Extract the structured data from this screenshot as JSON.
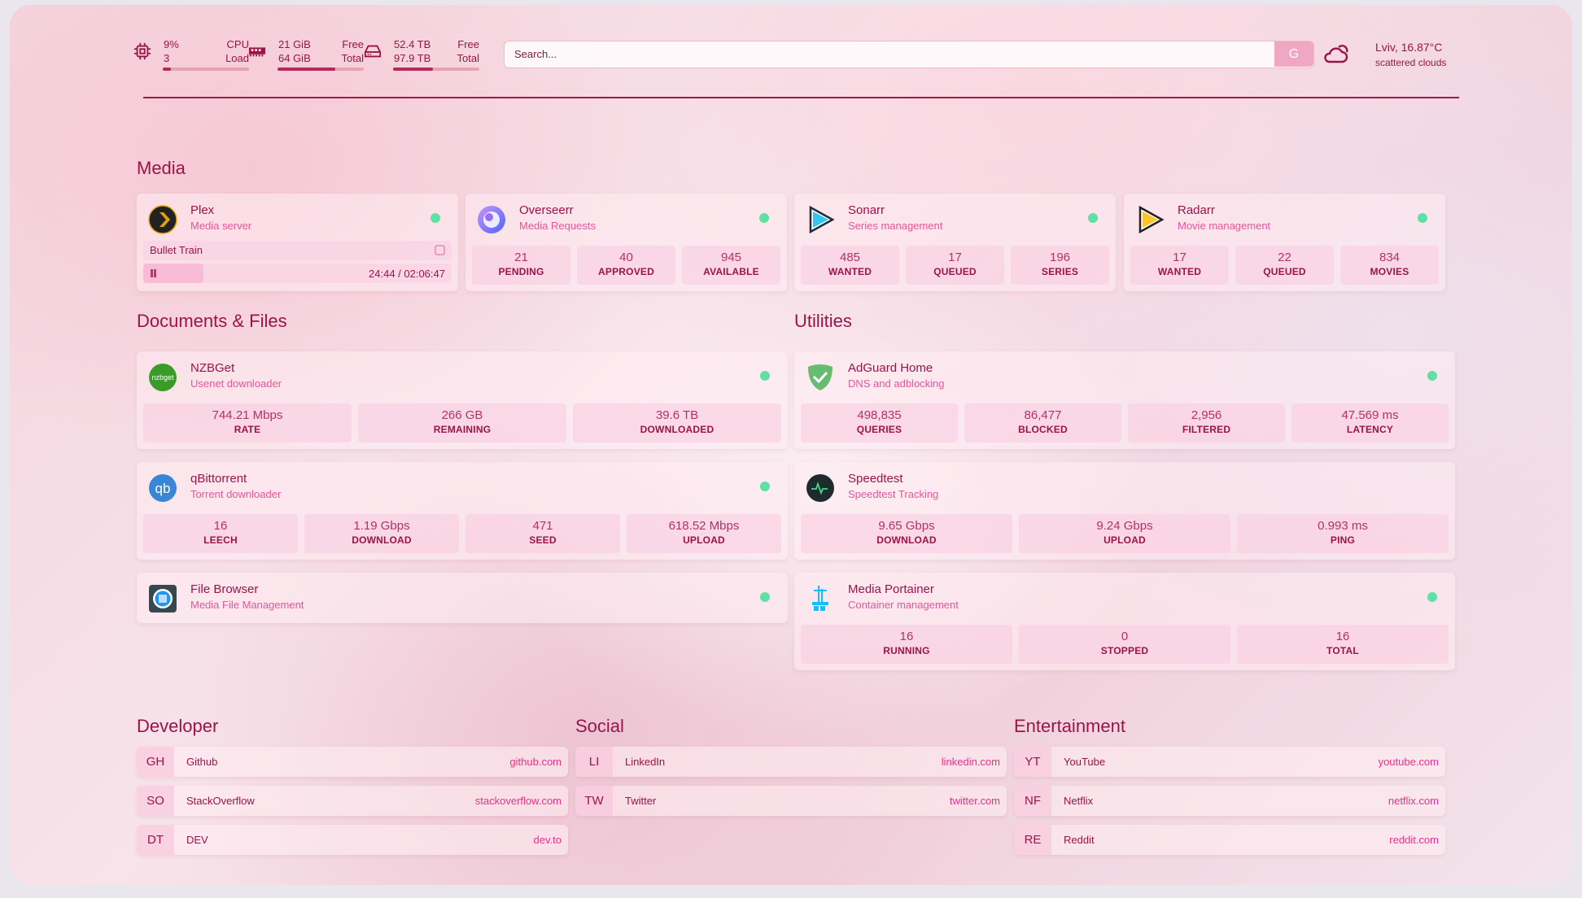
{
  "header": {
    "cpu": {
      "icon": "cpu-icon",
      "value": "9%",
      "sub": "3",
      "label": "CPU",
      "sublabel": "Load",
      "percent": 9
    },
    "memory": {
      "icon": "memory-icon",
      "value": "21 GiB",
      "sub": "64 GiB",
      "label": "Free",
      "sublabel": "Total",
      "percent": 67
    },
    "disk": {
      "icon": "hard-drive-icon",
      "value": "52.4 TB",
      "sub": "97.9 TB",
      "label": "Free",
      "sublabel": "Total",
      "percent": 46
    },
    "search": {
      "placeholder": "Search...",
      "engine_label": "G"
    },
    "weather": {
      "icon": "cloud-sun-icon",
      "location": "Lviv, 16.87°C",
      "condition": "scattered clouds"
    }
  },
  "sections": {
    "media": "Media",
    "documents": "Documents & Files",
    "utilities": "Utilities",
    "developer": "Developer",
    "social": "Social",
    "entertainment": "Entertainment"
  },
  "media": [
    {
      "name": "Plex",
      "desc": "Media server",
      "icon": "plex-icon",
      "status": "online",
      "now_playing": {
        "title": "Bullet Train",
        "progress": "24:44 / 02:06:47",
        "progress_fraction": 0.195
      }
    },
    {
      "name": "Overseerr",
      "desc": "Media Requests",
      "icon": "overseerr-icon",
      "status": "online",
      "stats": [
        {
          "v": "21",
          "l": "PENDING"
        },
        {
          "v": "40",
          "l": "APPROVED"
        },
        {
          "v": "945",
          "l": "AVAILABLE"
        }
      ]
    },
    {
      "name": "Sonarr",
      "desc": "Series management",
      "icon": "sonarr-icon",
      "status": "online",
      "stats": [
        {
          "v": "485",
          "l": "WANTED"
        },
        {
          "v": "17",
          "l": "QUEUED"
        },
        {
          "v": "196",
          "l": "SERIES"
        }
      ]
    },
    {
      "name": "Radarr",
      "desc": "Movie management",
      "icon": "radarr-icon",
      "status": "online",
      "stats": [
        {
          "v": "17",
          "l": "WANTED"
        },
        {
          "v": "22",
          "l": "QUEUED"
        },
        {
          "v": "834",
          "l": "MOVIES"
        }
      ]
    }
  ],
  "documents": [
    {
      "name": "NZBGet",
      "desc": "Usenet downloader",
      "icon": "nzbget-icon",
      "logo_text": "nzbget",
      "status": "online",
      "stats": [
        {
          "v": "744.21 Mbps",
          "l": "RATE"
        },
        {
          "v": "266 GB",
          "l": "REMAINING"
        },
        {
          "v": "39.6 TB",
          "l": "DOWNLOADED"
        }
      ]
    },
    {
      "name": "qBittorrent",
      "desc": "Torrent downloader",
      "icon": "qbittorrent-icon",
      "logo_text": "qb",
      "status": "online",
      "stats": [
        {
          "v": "16",
          "l": "LEECH"
        },
        {
          "v": "1.19 Gbps",
          "l": "DOWNLOAD"
        },
        {
          "v": "471",
          "l": "SEED"
        },
        {
          "v": "618.52 Mbps",
          "l": "UPLOAD"
        }
      ]
    },
    {
      "name": "File Browser",
      "desc": "Media File Management",
      "icon": "filebrowser-icon",
      "status": "online",
      "stats": []
    }
  ],
  "utilities": [
    {
      "name": "AdGuard Home",
      "desc": "DNS and adblocking",
      "icon": "adguard-shield-icon",
      "status": "online",
      "stats": [
        {
          "v": "498,835",
          "l": "QUERIES"
        },
        {
          "v": "86,477",
          "l": "BLOCKED"
        },
        {
          "v": "2,956",
          "l": "FILTERED"
        },
        {
          "v": "47.569 ms",
          "l": "LATENCY"
        }
      ]
    },
    {
      "name": "Speedtest",
      "desc": "Speedtest Tracking",
      "icon": "speedtest-icon",
      "status": "",
      "stats": [
        {
          "v": "9.65 Gbps",
          "l": "DOWNLOAD"
        },
        {
          "v": "9.24 Gbps",
          "l": "UPLOAD"
        },
        {
          "v": "0.993 ms",
          "l": "PING"
        }
      ]
    },
    {
      "name": "Media Portainer",
      "desc": "Container management",
      "icon": "portainer-icon",
      "status": "online",
      "stats": [
        {
          "v": "16",
          "l": "RUNNING"
        },
        {
          "v": "0",
          "l": "STOPPED"
        },
        {
          "v": "16",
          "l": "TOTAL"
        }
      ]
    }
  ],
  "bookmarks": {
    "developer": [
      {
        "abbr": "GH",
        "name": "Github",
        "url": "github.com"
      },
      {
        "abbr": "SO",
        "name": "StackOverflow",
        "url": "stackoverflow.com"
      },
      {
        "abbr": "DT",
        "name": "DEV",
        "url": "dev.to"
      }
    ],
    "social": [
      {
        "abbr": "LI",
        "name": "LinkedIn",
        "url": "linkedin.com"
      },
      {
        "abbr": "TW",
        "name": "Twitter",
        "url": "twitter.com"
      }
    ],
    "entertainment": [
      {
        "abbr": "YT",
        "name": "YouTube",
        "url": "youtube.com"
      },
      {
        "abbr": "NF",
        "name": "Netflix",
        "url": "netflix.com"
      },
      {
        "abbr": "RE",
        "name": "Reddit",
        "url": "reddit.com"
      }
    ]
  },
  "colors": {
    "accent": "#9b1447",
    "link": "#e8318a",
    "status_online": "#5fe0a4"
  }
}
